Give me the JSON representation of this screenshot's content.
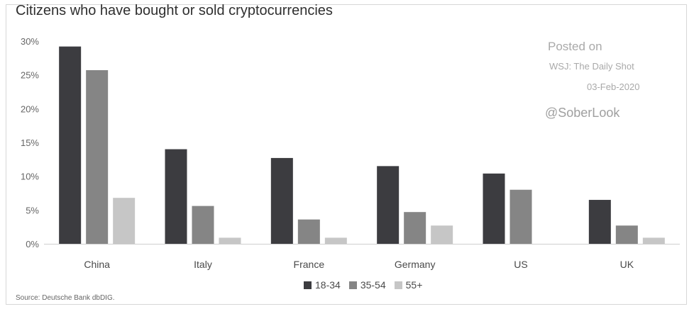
{
  "chart_data": {
    "type": "bar",
    "title": "Citizens who have bought or sold cryptocurrencies",
    "categories": [
      "China",
      "Italy",
      "France",
      "Germany",
      "US",
      "UK"
    ],
    "series": [
      {
        "name": "18-34",
        "color": "#3c3c40",
        "values": [
          29.2,
          14.0,
          12.7,
          11.5,
          10.4,
          6.5
        ]
      },
      {
        "name": "35-54",
        "color": "#858585",
        "values": [
          25.7,
          5.6,
          3.6,
          4.7,
          8.0,
          2.7
        ]
      },
      {
        "name": "55+",
        "color": "#c6c6c6",
        "values": [
          6.8,
          0.9,
          0.9,
          2.7,
          0,
          0.9
        ]
      }
    ],
    "yticks": [
      "30%",
      "25%",
      "20%",
      "15%",
      "10%",
      "5%",
      "0%"
    ],
    "ylim": [
      0,
      30
    ],
    "grid": false,
    "legend_position": "bottom"
  },
  "watermark": {
    "line1": "Posted on",
    "line2": "WSJ: The Daily Shot",
    "line3": "03-Feb-2020",
    "line4": "@SoberLook"
  },
  "source": "Source: Deutsche Bank dbDIG."
}
